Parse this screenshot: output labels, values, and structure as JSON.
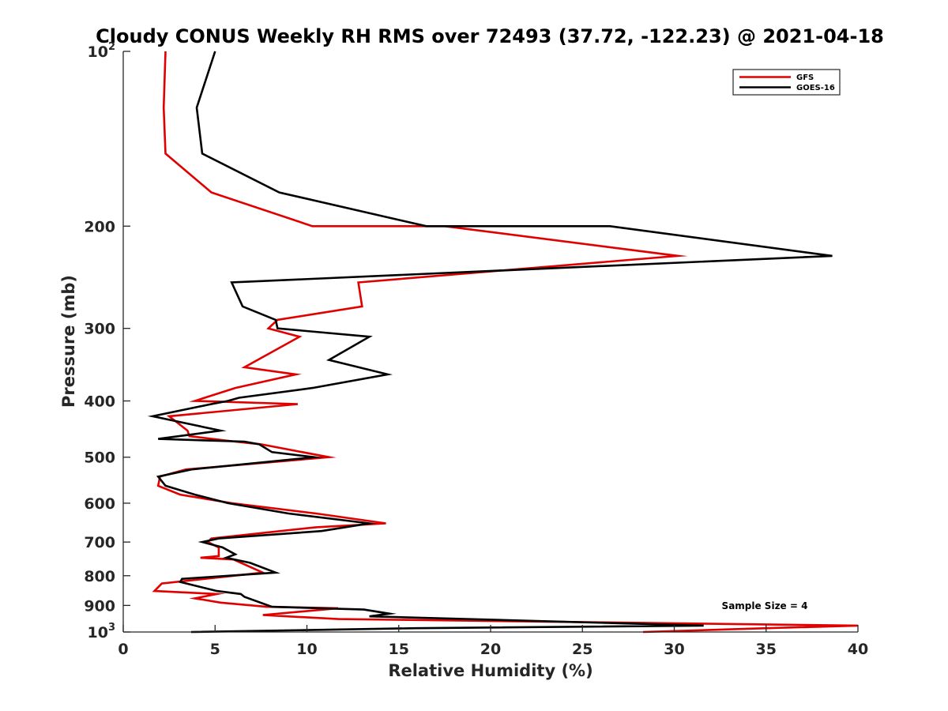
{
  "chart_data": {
    "type": "line",
    "title": "Cloudy CONUS Weekly RH RMS over 72493 (37.72, -122.23) @ 2021-04-18",
    "xlabel": "Relative Humidity (%)",
    "ylabel": "Pressure (mb)",
    "xlim": [
      0,
      40
    ],
    "ylim": [
      100,
      1000
    ],
    "y_scale": "log",
    "y_reversed": true,
    "grid": false,
    "legend_position": "top-right",
    "x_ticks": [
      0,
      5,
      10,
      15,
      20,
      25,
      30,
      35,
      40
    ],
    "y_ticks": [
      {
        "value": 100,
        "label": "10",
        "sup": "2"
      },
      {
        "value": 200,
        "label": "200"
      },
      {
        "value": 300,
        "label": "300"
      },
      {
        "value": 400,
        "label": "400"
      },
      {
        "value": 500,
        "label": "500"
      },
      {
        "value": 600,
        "label": "600"
      },
      {
        "value": 700,
        "label": "700"
      },
      {
        "value": 800,
        "label": "800"
      },
      {
        "value": 900,
        "label": "900"
      },
      {
        "value": 1000,
        "label": "10",
        "sup": "3"
      }
    ],
    "annotation": "Sample Size = 4",
    "series": [
      {
        "name": "GFS",
        "color": "#e00000",
        "points": [
          [
            2.3,
            100
          ],
          [
            2.2,
            125
          ],
          [
            2.3,
            150
          ],
          [
            4.8,
            175
          ],
          [
            10.3,
            200
          ],
          [
            17.5,
            200
          ],
          [
            30.2,
            225
          ],
          [
            12.8,
            250
          ],
          [
            13.0,
            275
          ],
          [
            8.4,
            290
          ],
          [
            7.9,
            300
          ],
          [
            9.6,
            310
          ],
          [
            6.6,
            350
          ],
          [
            9.4,
            360
          ],
          [
            6.1,
            380
          ],
          [
            3.9,
            400
          ],
          [
            9.5,
            405
          ],
          [
            2.5,
            425
          ],
          [
            3.5,
            450
          ],
          [
            3.6,
            460
          ],
          [
            6.1,
            470
          ],
          [
            7.5,
            475
          ],
          [
            11.2,
            500
          ],
          [
            3.4,
            525
          ],
          [
            2.0,
            540
          ],
          [
            1.9,
            560
          ],
          [
            3.1,
            580
          ],
          [
            5.9,
            600
          ],
          [
            10.5,
            625
          ],
          [
            14.3,
            650
          ],
          [
            10.5,
            660
          ],
          [
            4.8,
            690
          ],
          [
            4.6,
            700
          ],
          [
            5.2,
            715
          ],
          [
            5.2,
            740
          ],
          [
            4.2,
            745
          ],
          [
            6.0,
            750
          ],
          [
            7.6,
            790
          ],
          [
            2.1,
            825
          ],
          [
            1.7,
            850
          ],
          [
            5.1,
            860
          ],
          [
            3.9,
            875
          ],
          [
            5.3,
            890
          ],
          [
            7.8,
            905
          ],
          [
            11.7,
            910
          ],
          [
            7.6,
            935
          ],
          [
            11.7,
            950
          ],
          [
            40.0,
            975
          ],
          [
            35.0,
            985
          ],
          [
            28.3,
            1000
          ]
        ]
      },
      {
        "name": "GOES-16",
        "color": "#000000",
        "points": [
          [
            5.0,
            100
          ],
          [
            4.0,
            125
          ],
          [
            4.3,
            150
          ],
          [
            8.5,
            175
          ],
          [
            16.5,
            200
          ],
          [
            26.5,
            200
          ],
          [
            38.6,
            225
          ],
          [
            5.9,
            250
          ],
          [
            6.5,
            275
          ],
          [
            8.3,
            290
          ],
          [
            8.4,
            300
          ],
          [
            13.4,
            310
          ],
          [
            11.2,
            340
          ],
          [
            14.4,
            360
          ],
          [
            10.3,
            380
          ],
          [
            6.3,
            395
          ],
          [
            5.7,
            400
          ],
          [
            4.8,
            405
          ],
          [
            1.6,
            425
          ],
          [
            5.3,
            450
          ],
          [
            1.9,
            465
          ],
          [
            6.6,
            470
          ],
          [
            7.4,
            475
          ],
          [
            8.1,
            490
          ],
          [
            10.4,
            500
          ],
          [
            3.7,
            525
          ],
          [
            1.9,
            540
          ],
          [
            2.3,
            560
          ],
          [
            3.9,
            580
          ],
          [
            5.7,
            600
          ],
          [
            9.0,
            625
          ],
          [
            13.4,
            650
          ],
          [
            10.8,
            670
          ],
          [
            5.2,
            690
          ],
          [
            4.3,
            700
          ],
          [
            5.4,
            715
          ],
          [
            6.1,
            735
          ],
          [
            5.6,
            745
          ],
          [
            6.9,
            760
          ],
          [
            8.3,
            790
          ],
          [
            3.2,
            810
          ],
          [
            3.1,
            820
          ],
          [
            5.1,
            850
          ],
          [
            6.4,
            860
          ],
          [
            6.6,
            870
          ],
          [
            8.1,
            905
          ],
          [
            13.1,
            915
          ],
          [
            14.5,
            930
          ],
          [
            13.4,
            940
          ],
          [
            31.6,
            975
          ],
          [
            15.9,
            985
          ],
          [
            3.7,
            1000
          ]
        ]
      }
    ]
  }
}
